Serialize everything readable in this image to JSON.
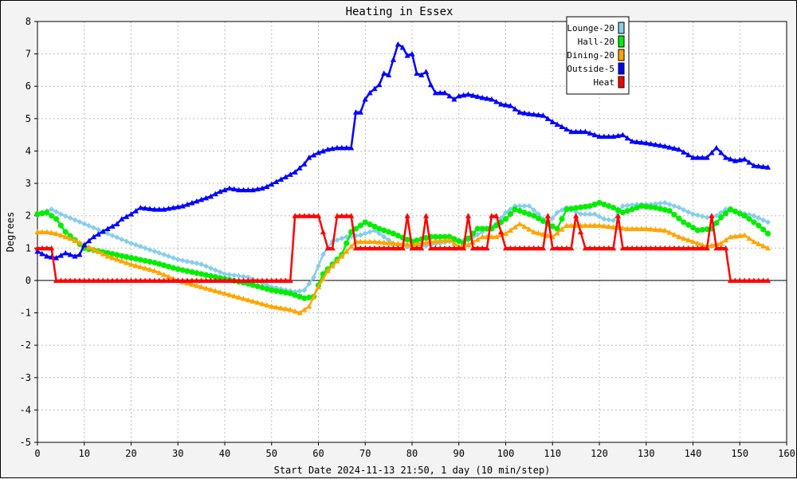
{
  "chart_data": {
    "type": "line",
    "title": "Heating in Essex",
    "xlabel": "Start Date 2024-11-13 21:50, 1 day (10 min/step)",
    "ylabel": "Degrees",
    "xlim": [
      0,
      160
    ],
    "ylim": [
      -5,
      8
    ],
    "xticks": [
      0,
      10,
      20,
      30,
      40,
      50,
      60,
      70,
      80,
      90,
      100,
      110,
      120,
      130,
      140,
      150,
      160
    ],
    "yticks": [
      -5,
      -4,
      -3,
      -2,
      -1,
      0,
      1,
      2,
      3,
      4,
      5,
      6,
      7,
      8
    ],
    "grid": true,
    "legend_position": "top-right",
    "series": [
      {
        "name": "Lounge-20",
        "color": "#87ceeb",
        "marker": "diamond",
        "points": [
          [
            0,
            2.05
          ],
          [
            3,
            2.2
          ],
          [
            5,
            2.05
          ],
          [
            10,
            1.75
          ],
          [
            15,
            1.45
          ],
          [
            20,
            1.15
          ],
          [
            25,
            0.9
          ],
          [
            30,
            0.65
          ],
          [
            35,
            0.5
          ],
          [
            40,
            0.2
          ],
          [
            45,
            0.1
          ],
          [
            50,
            -0.2
          ],
          [
            55,
            -0.35
          ],
          [
            57,
            -0.3
          ],
          [
            59,
            0.1
          ],
          [
            61,
            0.8
          ],
          [
            63,
            1.2
          ],
          [
            66,
            1.35
          ],
          [
            69,
            1.4
          ],
          [
            72,
            1.55
          ],
          [
            76,
            1.15
          ],
          [
            80,
            1.0
          ],
          [
            84,
            1.1
          ],
          [
            88,
            1.2
          ],
          [
            92,
            1.25
          ],
          [
            95,
            1.5
          ],
          [
            98,
            1.75
          ],
          [
            100,
            2.1
          ],
          [
            102,
            2.3
          ],
          [
            105,
            2.3
          ],
          [
            107,
            2.05
          ],
          [
            109,
            1.75
          ],
          [
            111,
            2.1
          ],
          [
            113,
            2.25
          ],
          [
            116,
            2.05
          ],
          [
            119,
            2.05
          ],
          [
            121,
            1.9
          ],
          [
            123,
            1.85
          ],
          [
            125,
            2.3
          ],
          [
            128,
            2.35
          ],
          [
            131,
            2.35
          ],
          [
            134,
            2.4
          ],
          [
            137,
            2.25
          ],
          [
            140,
            2.05
          ],
          [
            143,
            1.95
          ],
          [
            145,
            2.0
          ],
          [
            147,
            2.2
          ],
          [
            150,
            2.1
          ],
          [
            153,
            2.0
          ],
          [
            156,
            1.8
          ]
        ]
      },
      {
        "name": "Hall-20",
        "color": "#00ee00",
        "marker": "circle",
        "points": [
          [
            0,
            2.05
          ],
          [
            2,
            2.1
          ],
          [
            4,
            1.9
          ],
          [
            6,
            1.5
          ],
          [
            10,
            1.0
          ],
          [
            15,
            0.85
          ],
          [
            20,
            0.7
          ],
          [
            25,
            0.55
          ],
          [
            30,
            0.35
          ],
          [
            35,
            0.2
          ],
          [
            40,
            0.05
          ],
          [
            45,
            -0.1
          ],
          [
            50,
            -0.3
          ],
          [
            54,
            -0.4
          ],
          [
            57,
            -0.55
          ],
          [
            59,
            -0.5
          ],
          [
            61,
            0.2
          ],
          [
            63,
            0.5
          ],
          [
            65,
            0.8
          ],
          [
            67,
            1.5
          ],
          [
            70,
            1.8
          ],
          [
            73,
            1.6
          ],
          [
            76,
            1.45
          ],
          [
            80,
            1.2
          ],
          [
            84,
            1.35
          ],
          [
            88,
            1.35
          ],
          [
            91,
            1.15
          ],
          [
            94,
            1.6
          ],
          [
            97,
            1.6
          ],
          [
            100,
            1.9
          ],
          [
            102,
            2.2
          ],
          [
            106,
            2.0
          ],
          [
            109,
            1.75
          ],
          [
            111,
            1.6
          ],
          [
            113,
            2.2
          ],
          [
            118,
            2.3
          ],
          [
            120,
            2.4
          ],
          [
            123,
            2.25
          ],
          [
            125,
            2.1
          ],
          [
            129,
            2.3
          ],
          [
            132,
            2.25
          ],
          [
            135,
            2.15
          ],
          [
            138,
            1.8
          ],
          [
            141,
            1.55
          ],
          [
            144,
            1.6
          ],
          [
            146,
            1.95
          ],
          [
            148,
            2.2
          ],
          [
            151,
            2.0
          ],
          [
            154,
            1.7
          ],
          [
            156,
            1.45
          ]
        ]
      },
      {
        "name": "Dining-20",
        "color": "#ffa500",
        "marker": "triangle",
        "points": [
          [
            0,
            1.5
          ],
          [
            2,
            1.5
          ],
          [
            4,
            1.45
          ],
          [
            7,
            1.3
          ],
          [
            10,
            1.1
          ],
          [
            15,
            0.75
          ],
          [
            20,
            0.5
          ],
          [
            25,
            0.3
          ],
          [
            30,
            0.0
          ],
          [
            35,
            -0.2
          ],
          [
            40,
            -0.4
          ],
          [
            45,
            -0.6
          ],
          [
            50,
            -0.8
          ],
          [
            54,
            -0.9
          ],
          [
            56,
            -1.0
          ],
          [
            58,
            -0.8
          ],
          [
            60,
            -0.2
          ],
          [
            62,
            0.3
          ],
          [
            64,
            0.6
          ],
          [
            66,
            0.9
          ],
          [
            68,
            1.2
          ],
          [
            72,
            1.2
          ],
          [
            76,
            1.15
          ],
          [
            80,
            1.1
          ],
          [
            84,
            1.2
          ],
          [
            88,
            1.25
          ],
          [
            90,
            1.05
          ],
          [
            92,
            1.1
          ],
          [
            95,
            1.35
          ],
          [
            98,
            1.35
          ],
          [
            100,
            1.45
          ],
          [
            103,
            1.75
          ],
          [
            106,
            1.5
          ],
          [
            110,
            1.35
          ],
          [
            113,
            1.7
          ],
          [
            117,
            1.7
          ],
          [
            120,
            1.7
          ],
          [
            123,
            1.65
          ],
          [
            126,
            1.6
          ],
          [
            130,
            1.6
          ],
          [
            134,
            1.55
          ],
          [
            137,
            1.35
          ],
          [
            140,
            1.2
          ],
          [
            143,
            1.05
          ],
          [
            146,
            1.15
          ],
          [
            148,
            1.35
          ],
          [
            151,
            1.4
          ],
          [
            153,
            1.2
          ],
          [
            156,
            1.0
          ]
        ]
      },
      {
        "name": "Outside-5",
        "color": "#0000ff",
        "marker": "triangle",
        "points": [
          [
            0,
            0.9
          ],
          [
            2,
            0.75
          ],
          [
            4,
            0.7
          ],
          [
            6,
            0.85
          ],
          [
            8,
            0.75
          ],
          [
            9,
            0.8
          ],
          [
            10,
            1.1
          ],
          [
            12,
            1.35
          ],
          [
            15,
            1.6
          ],
          [
            17,
            1.75
          ],
          [
            18,
            1.9
          ],
          [
            20,
            2.05
          ],
          [
            22,
            2.25
          ],
          [
            25,
            2.2
          ],
          [
            27,
            2.2
          ],
          [
            29,
            2.25
          ],
          [
            31,
            2.3
          ],
          [
            34,
            2.45
          ],
          [
            37,
            2.6
          ],
          [
            39,
            2.75
          ],
          [
            41,
            2.85
          ],
          [
            43,
            2.8
          ],
          [
            46,
            2.8
          ],
          [
            48,
            2.85
          ],
          [
            49,
            2.9
          ],
          [
            51,
            3.05
          ],
          [
            53,
            3.2
          ],
          [
            55,
            3.35
          ],
          [
            57,
            3.6
          ],
          [
            58,
            3.8
          ],
          [
            60,
            3.95
          ],
          [
            62,
            4.05
          ],
          [
            64,
            4.1
          ],
          [
            67,
            4.1
          ],
          [
            68,
            5.2
          ],
          [
            69,
            5.2
          ],
          [
            70,
            5.6
          ],
          [
            71,
            5.8
          ],
          [
            73,
            6.05
          ],
          [
            74,
            6.4
          ],
          [
            75,
            6.35
          ],
          [
            77,
            7.3
          ],
          [
            78,
            7.2
          ],
          [
            79,
            6.95
          ],
          [
            80,
            7.0
          ],
          [
            81,
            6.4
          ],
          [
            82,
            6.35
          ],
          [
            83,
            6.45
          ],
          [
            84,
            6.05
          ],
          [
            85,
            5.8
          ],
          [
            87,
            5.8
          ],
          [
            89,
            5.6
          ],
          [
            90,
            5.7
          ],
          [
            92,
            5.75
          ],
          [
            95,
            5.65
          ],
          [
            97,
            5.6
          ],
          [
            99,
            5.45
          ],
          [
            101,
            5.4
          ],
          [
            103,
            5.2
          ],
          [
            105,
            5.15
          ],
          [
            108,
            5.1
          ],
          [
            110,
            4.9
          ],
          [
            112,
            4.75
          ],
          [
            114,
            4.6
          ],
          [
            117,
            4.6
          ],
          [
            120,
            4.45
          ],
          [
            123,
            4.45
          ],
          [
            125,
            4.5
          ],
          [
            127,
            4.3
          ],
          [
            130,
            4.25
          ],
          [
            134,
            4.15
          ],
          [
            137,
            4.05
          ],
          [
            140,
            3.8
          ],
          [
            143,
            3.8
          ],
          [
            145,
            4.1
          ],
          [
            147,
            3.8
          ],
          [
            149,
            3.7
          ],
          [
            151,
            3.75
          ],
          [
            153,
            3.55
          ],
          [
            156,
            3.5
          ]
        ]
      },
      {
        "name": "Heat",
        "color": "#ff0000",
        "marker": "triangle",
        "points": [
          [
            0,
            1
          ],
          [
            3,
            1
          ],
          [
            4,
            0
          ],
          [
            54,
            0
          ],
          [
            55,
            2
          ],
          [
            60,
            2
          ],
          [
            62,
            1
          ],
          [
            63,
            1
          ],
          [
            64,
            2
          ],
          [
            67,
            2
          ],
          [
            68,
            1
          ],
          [
            78,
            1
          ],
          [
            79,
            2
          ],
          [
            80,
            1
          ],
          [
            82,
            1
          ],
          [
            83,
            2
          ],
          [
            84,
            1
          ],
          [
            91,
            1
          ],
          [
            92,
            2
          ],
          [
            93,
            1
          ],
          [
            96,
            1
          ],
          [
            97,
            2
          ],
          [
            98,
            2
          ],
          [
            100,
            1
          ],
          [
            108,
            1
          ],
          [
            109,
            2
          ],
          [
            110,
            1
          ],
          [
            114,
            1
          ],
          [
            115,
            2
          ],
          [
            117,
            1
          ],
          [
            123,
            1
          ],
          [
            124,
            2
          ],
          [
            125,
            1
          ],
          [
            143,
            1
          ],
          [
            144,
            2
          ],
          [
            145,
            1
          ],
          [
            147,
            1
          ],
          [
            148,
            0
          ],
          [
            156,
            0
          ]
        ]
      }
    ]
  }
}
